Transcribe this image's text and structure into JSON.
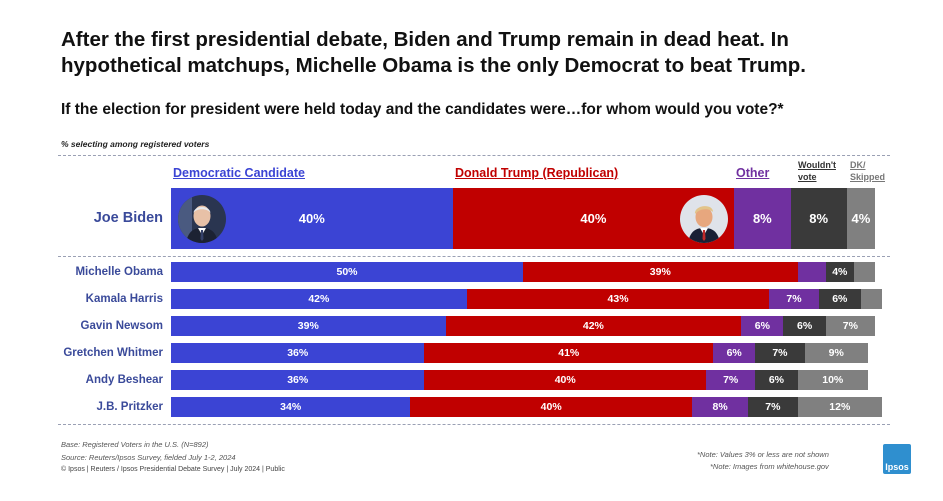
{
  "title_lines": [
    "After the first presidential debate, Biden and Trump remain in dead heat. In",
    "hypothetical matchups, Michelle Obama is the only Democrat to beat Trump."
  ],
  "subtitle": "If the election for president were held today and the candidates were…for whom would you vote?*",
  "note": "% selecting among registered voters",
  "headers": {
    "dem": "Democratic Candidate",
    "rep": "Donald Trump (Republican)",
    "other": "Other",
    "wouldnt1": "Wouldn't",
    "wouldnt2": "vote",
    "dk1": "DK/",
    "dk2": "Skipped"
  },
  "colors": {
    "dem": "#3b44d4",
    "rep": "#c00000",
    "other": "#7030a0",
    "wouldnt": "#3a3a3a",
    "dk": "#808080",
    "label": "#3a4a9a",
    "rep_header": "#c00000",
    "other_header": "#7030a0"
  },
  "chart_data": {
    "type": "bar",
    "orientation": "horizontal-stacked",
    "label_threshold_note": "*Note: Values 3% or less are not shown",
    "series": [
      {
        "name": "Democratic Candidate",
        "key": "dem"
      },
      {
        "name": "Donald Trump (Republican)",
        "key": "rep"
      },
      {
        "name": "Other",
        "key": "other"
      },
      {
        "name": "Wouldn't vote",
        "key": "wouldnt"
      },
      {
        "name": "DK/ Skipped",
        "key": "dk"
      }
    ],
    "rows": [
      {
        "label": "Joe Biden",
        "dem": 40,
        "rep": 40,
        "other": 8,
        "wouldnt": 8,
        "dk": 4
      },
      {
        "label": "Michelle Obama",
        "dem": 50,
        "rep": 39,
        "other": 4,
        "wouldnt": 4,
        "dk": 3
      },
      {
        "label": "Kamala Harris",
        "dem": 42,
        "rep": 43,
        "other": 7,
        "wouldnt": 6,
        "dk": 3
      },
      {
        "label": "Gavin Newsom",
        "dem": 39,
        "rep": 42,
        "other": 6,
        "wouldnt": 6,
        "dk": 7
      },
      {
        "label": "Gretchen Whitmer",
        "dem": 36,
        "rep": 41,
        "other": 6,
        "wouldnt": 7,
        "dk": 9
      },
      {
        "label": "Andy Beshear",
        "dem": 36,
        "rep": 40,
        "other": 7,
        "wouldnt": 6,
        "dk": 10
      },
      {
        "label": "J.B. Pritzker",
        "dem": 34,
        "rep": 40,
        "other": 8,
        "wouldnt": 7,
        "dk": 12
      }
    ],
    "visible_labels": [
      {
        "dem": "40%",
        "rep": "40%",
        "other": "8%",
        "wouldnt": "8%",
        "dk": "4%"
      },
      {
        "dem": "50%",
        "rep": "39%",
        "other": "",
        "wouldnt": "4%",
        "dk": ""
      },
      {
        "dem": "42%",
        "rep": "43%",
        "other": "7%",
        "wouldnt": "6%",
        "dk": ""
      },
      {
        "dem": "39%",
        "rep": "42%",
        "other": "6%",
        "wouldnt": "6%",
        "dk": "7%"
      },
      {
        "dem": "36%",
        "rep": "41%",
        "other": "6%",
        "wouldnt": "7%",
        "dk": "9%"
      },
      {
        "dem": "36%",
        "rep": "40%",
        "other": "7%",
        "wouldnt": "6%",
        "dk": "10%"
      },
      {
        "dem": "34%",
        "rep": "40%",
        "other": "8%",
        "wouldnt": "7%",
        "dk": "12%"
      }
    ]
  },
  "footer": {
    "base": "Base: Registered Voters in the U.S. (N=892)",
    "source": "Source: Reuters/Ipsos Survey, fielded July 1-2, 2024",
    "copyright": "© Ipsos | Reuters / Ipsos Presidential Debate Survey | July 2024 | Public",
    "note1": "*Note: Values 3% or less are not shown",
    "note2": "*Note: Images from whitehouse.gov",
    "logo": "Ipsos"
  },
  "portraits": {
    "left": "biden-portrait",
    "right": "trump-portrait"
  }
}
